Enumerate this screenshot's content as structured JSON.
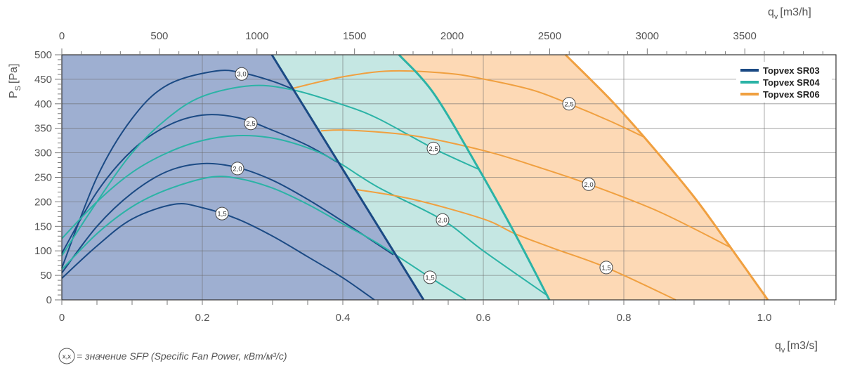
{
  "chart_data": {
    "type": "line",
    "x_bottom": {
      "label_q": "q",
      "label_sub": "v",
      "label_unit": "[m3/s]",
      "range": [
        0,
        1.1
      ],
      "ticks": [
        "0",
        "0.2",
        "0.4",
        "0.6",
        "0.8",
        "1.0"
      ],
      "tick_values": [
        0,
        0.2,
        0.4,
        0.6,
        0.8,
        1.0
      ]
    },
    "x_top": {
      "label_q": "q",
      "label_sub": "v",
      "label_unit": "[m3/h]",
      "ticks": [
        "0",
        "500",
        "1000",
        "1500",
        "2000",
        "2500",
        "3000",
        "3500"
      ],
      "tick_values": [
        0,
        500,
        1000,
        1500,
        2000,
        2500,
        3000,
        3500
      ]
    },
    "y": {
      "label_p": "P",
      "label_sub": "S",
      "label_unit": "[Pa]",
      "range": [
        0,
        500
      ],
      "ticks": [
        "0",
        "50",
        "100",
        "150",
        "200",
        "250",
        "300",
        "350",
        "400",
        "450",
        "500"
      ],
      "tick_values": [
        0,
        50,
        100,
        150,
        200,
        250,
        300,
        350,
        400,
        450,
        500
      ]
    },
    "grid": true,
    "legend_placement": "top-right",
    "series": [
      {
        "name": "Topvex SR03",
        "color": "#1b4a84",
        "fill": "#9eafd1",
        "boundary": [
          [
            0.299,
            500
          ],
          [
            0.515,
            0
          ]
        ],
        "curves": [
          {
            "sfp": "3,0",
            "label_at": [
              0.256,
              461
            ],
            "points": [
              [
                0,
                65
              ],
              [
                0.05,
                250
              ],
              [
                0.1,
                370
              ],
              [
                0.15,
                438
              ],
              [
                0.22,
                467
              ],
              [
                0.26,
                462
              ],
              [
                0.3,
                446
              ],
              [
                0.329,
                430
              ]
            ]
          },
          {
            "sfp": "2,5",
            "label_at": [
              0.269,
              360
            ],
            "points": [
              [
                0,
                95
              ],
              [
                0.05,
                220
              ],
              [
                0.1,
                305
              ],
              [
                0.15,
                355
              ],
              [
                0.2,
                377
              ],
              [
                0.25,
                372
              ],
              [
                0.3,
                346
              ],
              [
                0.35,
                315
              ],
              [
                0.392,
                281
              ]
            ]
          },
          {
            "sfp": "2,0",
            "label_at": [
              0.25,
              268
            ],
            "points": [
              [
                0,
                55
              ],
              [
                0.05,
                150
              ],
              [
                0.1,
                218
              ],
              [
                0.15,
                262
              ],
              [
                0.2,
                278
              ],
              [
                0.25,
                270
              ],
              [
                0.3,
                244
              ],
              [
                0.35,
                205
              ],
              [
                0.4,
                160
              ],
              [
                0.472,
                92
              ]
            ]
          },
          {
            "sfp": "1,5",
            "label_at": [
              0.228,
              176
            ],
            "points": [
              [
                0,
                44
              ],
              [
                0.05,
                110
              ],
              [
                0.1,
                165
              ],
              [
                0.16,
                195
              ],
              [
                0.2,
                188
              ],
              [
                0.25,
                165
              ],
              [
                0.3,
                130
              ],
              [
                0.35,
                88
              ],
              [
                0.4,
                45
              ],
              [
                0.445,
                0
              ]
            ]
          }
        ]
      },
      {
        "name": "Topvex SR04",
        "color": "#2bb3a6",
        "fill": "#c5e7e3",
        "boundary": [
          [
            0.48,
            500
          ],
          [
            0.53,
            420
          ],
          [
            0.594,
            266
          ],
          [
            0.645,
            135
          ],
          [
            0.694,
            0
          ]
        ],
        "curves": [
          {
            "sfp": "2,5",
            "label_at": [
              0.529,
              309
            ],
            "points": [
              [
                0,
                90
              ],
              [
                0.05,
                200
              ],
              [
                0.1,
                300
              ],
              [
                0.15,
                370
              ],
              [
                0.2,
                415
              ],
              [
                0.27,
                437
              ],
              [
                0.33,
                428
              ],
              [
                0.4,
                398
              ],
              [
                0.45,
                370
              ],
              [
                0.529,
                309
              ],
              [
                0.594,
                266
              ]
            ]
          },
          {
            "sfp": "2,0",
            "label_at": [
              0.542,
              163
            ],
            "points": [
              [
                0,
                125
              ],
              [
                0.05,
                200
              ],
              [
                0.1,
                260
              ],
              [
                0.15,
                300
              ],
              [
                0.2,
                325
              ],
              [
                0.25,
                335
              ],
              [
                0.3,
                330
              ],
              [
                0.35,
                310
              ],
              [
                0.392,
                282
              ],
              [
                0.45,
                230
              ],
              [
                0.542,
                163
              ],
              [
                0.6,
                100
              ],
              [
                0.692,
                8
              ]
            ]
          },
          {
            "sfp": "1,5",
            "label_at": [
              0.524,
              46
            ],
            "points": [
              [
                0,
                62
              ],
              [
                0.05,
                135
              ],
              [
                0.1,
                190
              ],
              [
                0.15,
                225
              ],
              [
                0.21,
                250
              ],
              [
                0.25,
                248
              ],
              [
                0.3,
                228
              ],
              [
                0.35,
                195
              ],
              [
                0.4,
                155
              ],
              [
                0.45,
                115
              ],
              [
                0.524,
                46
              ],
              [
                0.575,
                0
              ]
            ]
          }
        ]
      },
      {
        "name": "Topvex SR06",
        "color": "#f0a040",
        "fill": "#fdd9b5",
        "boundary": [
          [
            0.717,
            500
          ],
          [
            0.78,
            410
          ],
          [
            0.829,
            332
          ],
          [
            0.9,
            210
          ],
          [
            0.952,
            107
          ],
          [
            1.005,
            0
          ]
        ],
        "curves": [
          {
            "sfp": "2,5",
            "label_at": [
              0.722,
              400
            ],
            "points": [
              [
                0.327,
                431
              ],
              [
                0.4,
                455
              ],
              [
                0.469,
                467
              ],
              [
                0.55,
                462
              ],
              [
                0.602,
                450
              ],
              [
                0.67,
                428
              ],
              [
                0.722,
                400
              ],
              [
                0.78,
                365
              ],
              [
                0.829,
                332
              ]
            ]
          },
          {
            "sfp": "2,0",
            "label_at": [
              0.75,
              236
            ],
            "points": [
              [
                0.369,
                345
              ],
              [
                0.41,
                346
              ],
              [
                0.5,
                335
              ],
              [
                0.602,
                304
              ],
              [
                0.68,
                270
              ],
              [
                0.75,
                236
              ],
              [
                0.85,
                180
              ],
              [
                0.952,
                107
              ]
            ]
          },
          {
            "sfp": "1,5",
            "label_at": [
              0.775,
              66
            ],
            "points": [
              [
                0.42,
                225
              ],
              [
                0.5,
                205
              ],
              [
                0.6,
                165
              ],
              [
                0.645,
                135
              ],
              [
                0.7,
                105
              ],
              [
                0.775,
                66
              ],
              [
                0.874,
                0
              ]
            ]
          }
        ]
      }
    ],
    "footnote": {
      "symbol": "x,x",
      "text": "= значение SFP (Specific Fan Power, кВт/м³/с)"
    }
  }
}
